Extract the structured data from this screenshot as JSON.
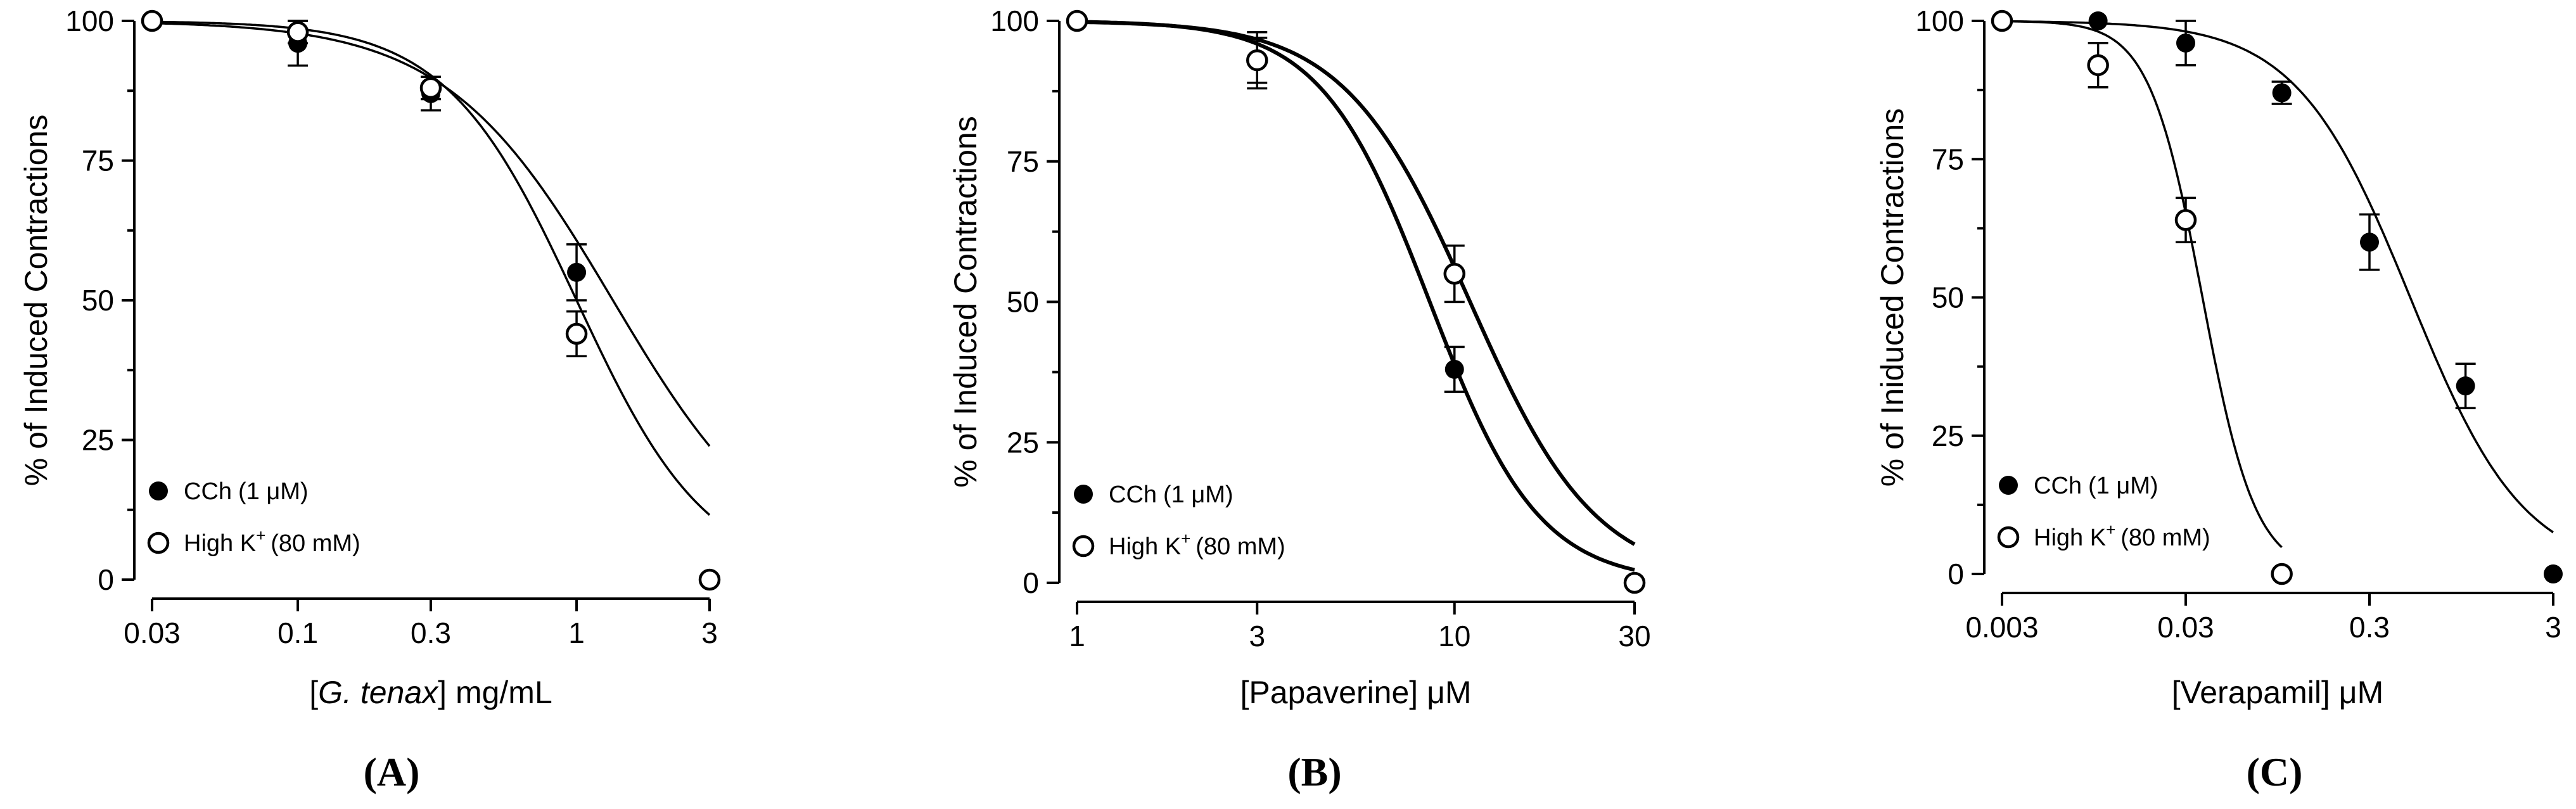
{
  "chart_data": [
    {
      "type": "scatter",
      "panel_label": "(A)",
      "xscale": "log",
      "xlim": [
        0.03,
        3
      ],
      "ylim": [
        0,
        100
      ],
      "xticks": [
        "0.03",
        "0.1",
        "0.3",
        "1",
        "3"
      ],
      "xtick_values": [
        0.03,
        0.1,
        0.3,
        1,
        3
      ],
      "yticks": [
        "0",
        "25",
        "50",
        "75",
        "100"
      ],
      "xlabel_parts": [
        "[",
        "G. tenax",
        "] mg/mL"
      ],
      "ylabel": "% of Induced Contractions",
      "legend_position": "bottom-left",
      "series": [
        {
          "name_main": "CCh",
          "name_suffix": "(1 μM)",
          "marker": "filled",
          "x": [
            0.03,
            0.1,
            0.3,
            1,
            3
          ],
          "y": [
            100,
            96,
            87,
            55,
            0
          ],
          "err": [
            0,
            4,
            3,
            5,
            0
          ],
          "fit": {
            "ic50": 1.35,
            "hill": 1.45
          }
        },
        {
          "name_main": "High  K",
          "name_sup": "+",
          "name_suffix": "(80 mM)",
          "marker": "open",
          "x": [
            0.03,
            0.1,
            0.3,
            1,
            3
          ],
          "y": [
            100,
            98,
            88,
            44,
            0
          ],
          "err": [
            0,
            2,
            2,
            4,
            0
          ],
          "fit": {
            "ic50": 1.0,
            "hill": 1.85
          }
        }
      ]
    },
    {
      "type": "scatter",
      "panel_label": "(B)",
      "xscale": "log",
      "xlim": [
        1,
        30
      ],
      "ylim": [
        0,
        100
      ],
      "xticks": [
        "1",
        "3",
        "10",
        "30"
      ],
      "xtick_values": [
        1,
        3,
        10,
        30
      ],
      "yticks": [
        "0",
        "25",
        "50",
        "75",
        "100"
      ],
      "xlabel_parts": [
        "[Papaverine] μM"
      ],
      "ylabel": "% of Induced Contractions",
      "legend_position": "bottom-left",
      "series": [
        {
          "name_main": "CCh",
          "name_suffix": "(1 μM)",
          "marker": "filled",
          "x": [
            1,
            3,
            10,
            30
          ],
          "y": [
            100,
            93,
            38,
            0
          ],
          "err": [
            0,
            5,
            4,
            0
          ],
          "fit": {
            "ic50": 8.6,
            "hill": 3.0
          }
        },
        {
          "name_main": "High  K",
          "name_sup": "+",
          "name_suffix": "(80 mM)",
          "marker": "open",
          "x": [
            1,
            3,
            10,
            30
          ],
          "y": [
            100,
            93,
            55,
            0
          ],
          "err": [
            0,
            4,
            5,
            0
          ],
          "fit": {
            "ic50": 11.0,
            "hill": 2.6
          }
        }
      ]
    },
    {
      "type": "scatter",
      "panel_label": "(C)",
      "xscale": "log",
      "xlim": [
        0.003,
        3
      ],
      "ylim": [
        0,
        100
      ],
      "xticks": [
        "0.003",
        "0.03",
        "0.3",
        "3"
      ],
      "xtick_values": [
        0.003,
        0.03,
        0.3,
        3
      ],
      "yticks": [
        "0",
        "25",
        "50",
        "75",
        "100"
      ],
      "xlabel_parts": [
        "[Verapamil] μM"
      ],
      "ylabel": "% of Iniduced Contractions",
      "legend_position": "bottom-left",
      "series": [
        {
          "name_main": "CCh",
          "name_suffix": "(1 μM)",
          "marker": "filled",
          "x": [
            0.003,
            0.01,
            0.03,
            0.1,
            0.3,
            1,
            3
          ],
          "y": [
            100,
            100,
            96,
            87,
            60,
            34,
            0
          ],
          "err": [
            0,
            0,
            4,
            2,
            5,
            4,
            0
          ],
          "fit": {
            "ic50": 0.5,
            "hill": 1.4
          }
        },
        {
          "name_main": "High K",
          "name_sup": "+",
          "name_suffix": "(80 mM)",
          "marker": "open",
          "x": [
            0.003,
            0.01,
            0.03,
            0.1
          ],
          "y": [
            100,
            92,
            64,
            0
          ],
          "err": [
            0,
            4,
            4,
            0
          ],
          "fit": {
            "ic50": 0.037,
            "hill": 3.0
          }
        }
      ]
    }
  ]
}
